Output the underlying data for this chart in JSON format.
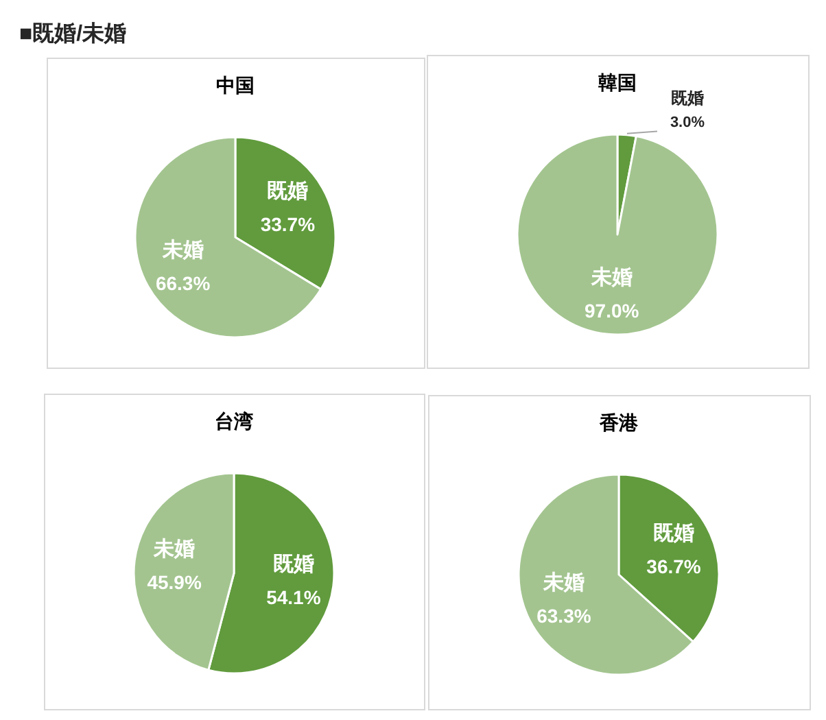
{
  "chart_data": [
    {
      "type": "other",
      "title": "■既婚/未婚"
    },
    {
      "type": "pie",
      "title": "中国",
      "categories": [
        "既婚",
        "未婚"
      ],
      "values": [
        33.7,
        66.3
      ],
      "colors": [
        "#619b3d",
        "#a3c48f"
      ],
      "value_labels": [
        "33.7%",
        "66.3%"
      ]
    },
    {
      "type": "pie",
      "title": "韓国",
      "categories": [
        "既婚",
        "未婚"
      ],
      "values": [
        3.0,
        97.0
      ],
      "colors": [
        "#619b3d",
        "#a3c48f"
      ],
      "value_labels": [
        "3.0%",
        "97.0%"
      ]
    },
    {
      "type": "pie",
      "title": "台湾",
      "categories": [
        "既婚",
        "未婚"
      ],
      "values": [
        54.1,
        45.9
      ],
      "colors": [
        "#619b3d",
        "#a3c48f"
      ],
      "value_labels": [
        "54.1%",
        "45.9%"
      ]
    },
    {
      "type": "pie",
      "title": "香港",
      "categories": [
        "既婚",
        "未婚"
      ],
      "values": [
        36.7,
        63.3
      ],
      "colors": [
        "#619b3d",
        "#a3c48f"
      ],
      "value_labels": [
        "36.7%",
        "63.3%"
      ]
    }
  ]
}
